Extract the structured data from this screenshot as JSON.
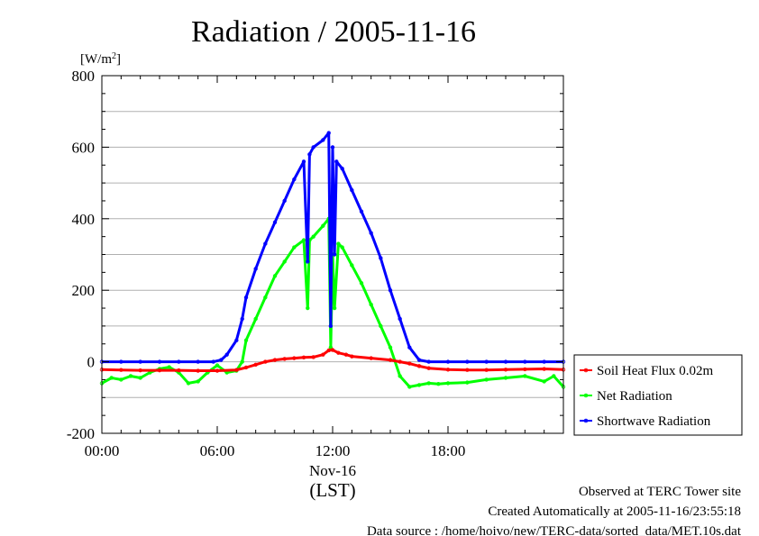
{
  "chart_data": {
    "type": "line",
    "title": "Radiation / 2005-11-16",
    "ylabel_unit": "[W/m",
    "ylabel_unit_sup": "2",
    "ylabel_unit_close": "]",
    "ylim": [
      -200,
      800
    ],
    "yticks": [
      "800",
      "600",
      "400",
      "200",
      "0",
      "-200"
    ],
    "xlim": [
      0,
      24
    ],
    "xticks": [
      "00:00",
      "06:00",
      "12:00",
      "18:00"
    ],
    "x_sublabel": "Nov-16",
    "x_axis_label": "(LST)",
    "grid": true,
    "legend_position": "right",
    "x_units": "hour of day (LST)",
    "series": [
      {
        "name": "Soil Heat Flux 0.02m",
        "color": "#ff0000",
        "x": [
          0,
          1,
          2,
          3,
          4,
          5,
          6,
          7,
          7.5,
          8,
          8.5,
          9,
          9.5,
          10,
          10.5,
          11,
          11.5,
          11.8,
          12,
          12.3,
          12.7,
          13,
          14,
          15,
          15.5,
          16,
          16.5,
          17,
          18,
          19,
          20,
          21,
          22,
          23,
          24
        ],
        "values": [
          -22,
          -23,
          -24,
          -24,
          -24,
          -25,
          -25,
          -23,
          -16,
          -8,
          0,
          5,
          8,
          10,
          12,
          13,
          20,
          32,
          33,
          25,
          20,
          15,
          10,
          5,
          0,
          -5,
          -12,
          -18,
          -22,
          -23,
          -23,
          -22,
          -21,
          -20,
          -22
        ]
      },
      {
        "name": "Net Radiation",
        "color": "#00ff00",
        "x": [
          0,
          0.5,
          1,
          1.5,
          2,
          2.5,
          3,
          3.5,
          4,
          4.5,
          5,
          5.5,
          6,
          6.5,
          7,
          7.3,
          7.5,
          8,
          8.5,
          9,
          9.5,
          10,
          10.5,
          10.7,
          10.8,
          11,
          11.5,
          11.8,
          11.9,
          12,
          12.1,
          12.3,
          12.5,
          13,
          13.5,
          14,
          14.5,
          15,
          15.5,
          16,
          16.5,
          17,
          17.5,
          18,
          19,
          20,
          21,
          22,
          23,
          23.5,
          24
        ],
        "values": [
          -60,
          -45,
          -50,
          -40,
          -45,
          -30,
          -20,
          -15,
          -30,
          -60,
          -55,
          -30,
          -10,
          -30,
          -25,
          0,
          60,
          120,
          180,
          240,
          280,
          320,
          340,
          150,
          340,
          350,
          380,
          400,
          40,
          300,
          150,
          330,
          320,
          270,
          220,
          160,
          100,
          40,
          -40,
          -70,
          -65,
          -60,
          -62,
          -60,
          -58,
          -50,
          -45,
          -40,
          -55,
          -40,
          -70
        ]
      },
      {
        "name": "Shortwave Radiation",
        "color": "#0000ff",
        "x": [
          0,
          1,
          2,
          3,
          4,
          5,
          5.8,
          6.2,
          6.5,
          7,
          7.3,
          7.5,
          8,
          8.5,
          9,
          9.5,
          10,
          10.5,
          10.7,
          10.8,
          11,
          11.5,
          11.8,
          11.9,
          12,
          12.1,
          12.2,
          12.5,
          13,
          13.5,
          14,
          14.5,
          15,
          15.5,
          16,
          16.5,
          17,
          18,
          19,
          20,
          21,
          22,
          23,
          24
        ],
        "values": [
          0,
          0,
          0,
          0,
          0,
          0,
          0,
          5,
          20,
          60,
          120,
          180,
          260,
          330,
          390,
          450,
          510,
          560,
          280,
          580,
          600,
          620,
          640,
          100,
          600,
          300,
          560,
          540,
          480,
          420,
          360,
          290,
          200,
          120,
          40,
          5,
          0,
          0,
          0,
          0,
          0,
          0,
          0,
          0
        ]
      }
    ]
  },
  "footer": {
    "line1": "Observed at TERC Tower site",
    "line2": "Created Automatically at 2005-11-16/23:55:18",
    "line3": "Data source : /home/hoivo/new/TERC-data/sorted_data/MET.10s.dat"
  }
}
